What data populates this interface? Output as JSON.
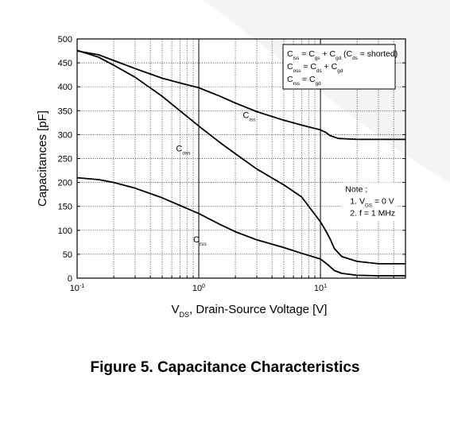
{
  "caption": "Figure 5. Capacitance Characteristics",
  "chart_data": {
    "type": "line",
    "xscale": "log",
    "xlim": [
      0.1,
      50
    ],
    "ylim": [
      0,
      500
    ],
    "grid": true,
    "xlabel": {
      "main": "V",
      "sub": "DS",
      "rest": ", Drain-Source Voltage [V]"
    },
    "ylabel": "Capacitances [pF]",
    "yticks": [
      0,
      50,
      100,
      150,
      200,
      250,
      300,
      350,
      400,
      450,
      500
    ],
    "xticks": [
      {
        "value": 0.1,
        "base": "10",
        "exp": "-1"
      },
      {
        "value": 1,
        "base": "10",
        "exp": "0"
      },
      {
        "value": 10,
        "base": "10",
        "exp": "1"
      }
    ],
    "series": [
      {
        "name": "Ciss",
        "label": "C",
        "label_sub": "iss",
        "x": [
          0.1,
          0.15,
          0.2,
          0.3,
          0.5,
          0.7,
          1,
          1.5,
          2,
          3,
          5,
          7,
          10,
          11,
          12,
          14,
          20,
          30,
          50
        ],
        "y": [
          475,
          467,
          455,
          438,
          418,
          408,
          398,
          380,
          366,
          348,
          330,
          320,
          310,
          305,
          298,
          292,
          290,
          290,
          290
        ]
      },
      {
        "name": "Coss",
        "label": "C",
        "label_sub": "oss",
        "x": [
          0.1,
          0.15,
          0.2,
          0.3,
          0.5,
          0.7,
          1,
          1.5,
          2,
          3,
          5,
          7,
          10,
          11,
          12,
          13,
          15,
          20,
          30,
          50
        ],
        "y": [
          476,
          462,
          445,
          420,
          380,
          350,
          318,
          283,
          260,
          228,
          195,
          170,
          118,
          100,
          82,
          62,
          45,
          35,
          30,
          30
        ]
      },
      {
        "name": "Crss",
        "label": "C",
        "label_sub": "rss",
        "x": [
          0.1,
          0.15,
          0.2,
          0.3,
          0.5,
          0.7,
          1,
          1.5,
          2,
          3,
          5,
          7,
          10,
          11,
          12,
          13,
          15,
          20,
          30,
          50
        ],
        "y": [
          210,
          206,
          200,
          188,
          168,
          152,
          135,
          112,
          97,
          80,
          64,
          52,
          40,
          32,
          24,
          16,
          10,
          6,
          5,
          5
        ]
      }
    ],
    "legend_box": [
      [
        {
          "t": "C"
        },
        {
          "s": "iss"
        },
        {
          "t": " = C"
        },
        {
          "s": "gs"
        },
        {
          "t": " + C"
        },
        {
          "s": "gd"
        },
        {
          "t": " (C"
        },
        {
          "s": "ds"
        },
        {
          "t": " = shorted)"
        }
      ],
      [
        {
          "t": "C"
        },
        {
          "s": "oss"
        },
        {
          "t": " = C"
        },
        {
          "s": "ds"
        },
        {
          "t": " + C"
        },
        {
          "s": "gd"
        }
      ],
      [
        {
          "t": "C"
        },
        {
          "s": "rss"
        },
        {
          "t": " = C"
        },
        {
          "s": "gd"
        }
      ]
    ],
    "note": [
      [
        {
          "t": "Note ;"
        }
      ],
      [
        {
          "t": "1. V"
        },
        {
          "s": "GS"
        },
        {
          "t": " = 0 V"
        }
      ],
      [
        {
          "t": "2. f = 1 MHz"
        }
      ]
    ]
  }
}
